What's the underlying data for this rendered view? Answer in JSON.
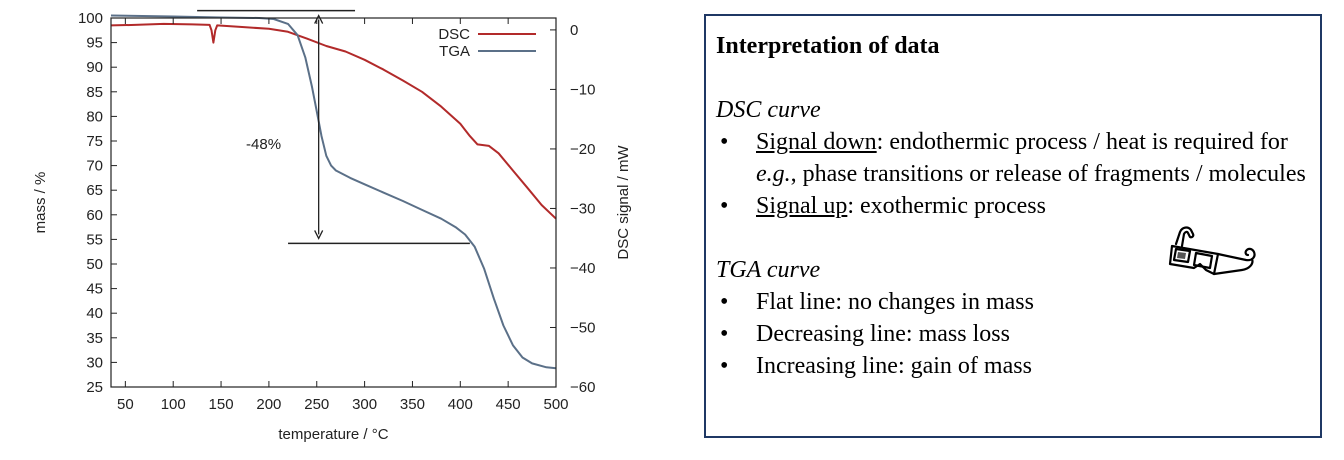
{
  "chart_data": {
    "type": "line",
    "xlabel": "temperature / °C",
    "ylabel_left": "mass / %",
    "ylabel_right": "DSC signal / mW",
    "xlim": [
      35,
      500
    ],
    "ylim_left": [
      25,
      100
    ],
    "ylim_right": [
      -60,
      2
    ],
    "x_ticks": [
      50,
      100,
      150,
      200,
      250,
      300,
      350,
      400,
      450,
      500
    ],
    "y_left_ticks": [
      25,
      30,
      35,
      40,
      45,
      50,
      55,
      60,
      65,
      70,
      75,
      80,
      85,
      90,
      95,
      100
    ],
    "y_right_ticks": [
      0,
      -10,
      -20,
      -30,
      -40,
      -50,
      -60
    ],
    "grid": false,
    "legend_position": "top-right",
    "series": [
      {
        "name": "DSC",
        "axis": "left",
        "color": "#b22a2a",
        "points": [
          [
            35,
            98.5
          ],
          [
            60,
            98.6
          ],
          [
            90,
            98.8
          ],
          [
            120,
            98.7
          ],
          [
            138,
            98.6
          ],
          [
            140,
            97.5
          ],
          [
            142,
            95.0
          ],
          [
            144,
            97.5
          ],
          [
            146,
            98.5
          ],
          [
            170,
            98.2
          ],
          [
            200,
            97.8
          ],
          [
            220,
            97.2
          ],
          [
            240,
            95.8
          ],
          [
            260,
            94.3
          ],
          [
            280,
            93.2
          ],
          [
            300,
            91.5
          ],
          [
            320,
            89.5
          ],
          [
            340,
            87.3
          ],
          [
            360,
            85.0
          ],
          [
            380,
            82.0
          ],
          [
            400,
            78.5
          ],
          [
            410,
            76.0
          ],
          [
            418,
            74.3
          ],
          [
            430,
            74.0
          ],
          [
            440,
            72.5
          ],
          [
            455,
            69.0
          ],
          [
            470,
            65.5
          ],
          [
            485,
            62.0
          ],
          [
            500,
            59.2
          ]
        ]
      },
      {
        "name": "TGA",
        "axis": "left",
        "color": "#5b7088",
        "points": [
          [
            35,
            100.5
          ],
          [
            100,
            100.3
          ],
          [
            150,
            100.1
          ],
          [
            190,
            100.0
          ],
          [
            205,
            99.8
          ],
          [
            220,
            98.8
          ],
          [
            230,
            96.5
          ],
          [
            238,
            92.0
          ],
          [
            245,
            86.0
          ],
          [
            250,
            81.0
          ],
          [
            255,
            76.0
          ],
          [
            260,
            72.0
          ],
          [
            265,
            70.0
          ],
          [
            270,
            69.0
          ],
          [
            285,
            67.5
          ],
          [
            300,
            66.2
          ],
          [
            320,
            64.5
          ],
          [
            340,
            62.8
          ],
          [
            360,
            61.0
          ],
          [
            380,
            59.2
          ],
          [
            395,
            57.5
          ],
          [
            405,
            56.0
          ],
          [
            415,
            53.5
          ],
          [
            425,
            49.0
          ],
          [
            435,
            43.0
          ],
          [
            445,
            37.5
          ],
          [
            455,
            33.5
          ],
          [
            465,
            31.0
          ],
          [
            475,
            29.8
          ],
          [
            490,
            29.0
          ],
          [
            500,
            28.8
          ]
        ]
      }
    ],
    "annotations": {
      "label": "-48%",
      "label_at": [
        255,
        75
      ],
      "upper_line": {
        "x_from": 125,
        "x_to": 290,
        "y": 101.5
      },
      "lower_line": {
        "x_from": 220,
        "x_to": 410,
        "y": 54.2
      },
      "arrow": {
        "x": 252,
        "y_from": 100.5,
        "y_to": 55.2
      }
    }
  },
  "panel": {
    "title": "Interpretation of data",
    "dsc_heading": "DSC curve",
    "dsc_bullet_1_underlined": "Signal down",
    "dsc_bullet_1_rest_a": ": endothermic process / heat is required for ",
    "dsc_bullet_1_italic": "e.g.",
    "dsc_bullet_1_rest_b": ", phase transitions or release of fragments / molecules",
    "dsc_bullet_2_underlined": "Signal up",
    "dsc_bullet_2_rest": ": exothermic process",
    "tga_heading": "TGA curve",
    "tga_bullets": [
      "Flat line: no changes in mass",
      "Decreasing line: mass loss",
      "Increasing line: gain of mass"
    ],
    "bullet_char": "•",
    "icon": "3d-glasses-icon",
    "border_color": "#1f3864"
  }
}
